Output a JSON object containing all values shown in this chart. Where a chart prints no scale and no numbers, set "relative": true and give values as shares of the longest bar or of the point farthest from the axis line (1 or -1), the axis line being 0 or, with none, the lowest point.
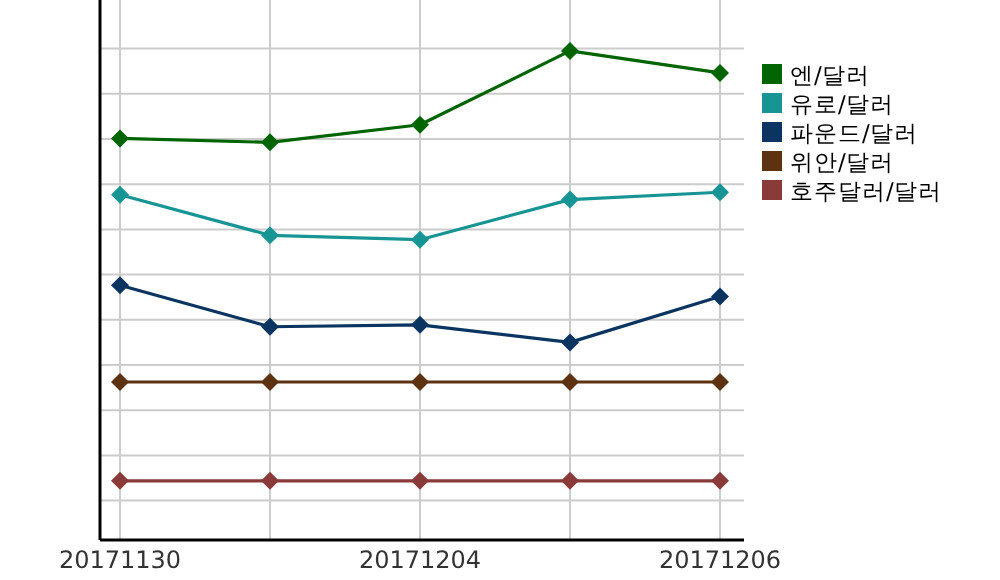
{
  "chart_data": {
    "type": "line",
    "relative": true,
    "categories": [
      "20171130",
      null,
      "20171204",
      null,
      "20171206"
    ],
    "grid": true,
    "legend": "right",
    "marker": "diamond",
    "line_style": "solid",
    "series": [
      {
        "name": "엔/달러",
        "color": "#006400",
        "values": [
          0.821,
          0.813,
          0.849,
          1,
          0.955
        ]
      },
      {
        "name": "유로/달러",
        "color": "#179595",
        "values": [
          0.706,
          0.623,
          0.614,
          0.696,
          0.711
        ]
      },
      {
        "name": "파운드/달러",
        "color": "#0b3560",
        "values": [
          0.521,
          0.436,
          0.44,
          0.404,
          0.498
        ]
      },
      {
        "name": "위안/달러",
        "color": "#5c3210",
        "values": [
          0.323,
          0.323,
          0.323,
          0.323,
          0.323
        ]
      },
      {
        "name": "호주달러/달러",
        "color": "#8b3a3a",
        "values": [
          0.121,
          0.121,
          0.121,
          0.121,
          0.121
        ]
      }
    ]
  }
}
